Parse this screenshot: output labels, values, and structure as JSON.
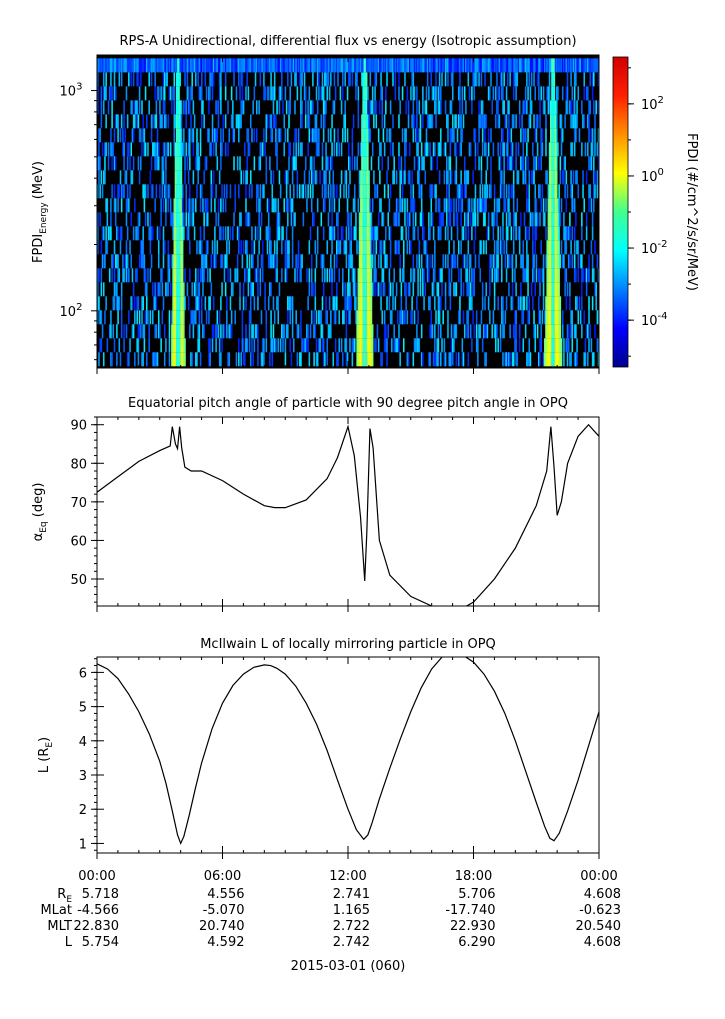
{
  "chart_data": [
    {
      "type": "heatmap",
      "title": "RPS-A Unidirectional, differential flux vs energy (Isotropic assumption)",
      "ylabel_main": "FPDI",
      "ylabel_sub": "Energy",
      "ylabel_units": "(MeV)",
      "y_scale": "log",
      "ylim": [
        55,
        1450
      ],
      "y_ticks": [
        {
          "value": 100,
          "mant": "10",
          "exp": "2"
        },
        {
          "value": 1000,
          "mant": "10",
          "exp": "3"
        }
      ],
      "colorbar": {
        "label": "FPDI (#/cm^2/s/sr/MeV)",
        "scale": "log",
        "range": [
          -5.3,
          3.3
        ],
        "ticks": [
          {
            "log": 2,
            "mant": "10",
            "exp": "2"
          },
          {
            "log": 0,
            "mant": "10",
            "exp": "0"
          },
          {
            "log": -2,
            "mant": "10",
            "exp": "-2"
          },
          {
            "log": -4,
            "mant": "10",
            "exp": "-4"
          }
        ],
        "colormap": "jet"
      },
      "energy_channels": 22,
      "time_range_hours": [
        0,
        24
      ],
      "radiation_belt_passes_hours": [
        3.55,
        4.2,
        12.4,
        13.2,
        21.4,
        22.2
      ],
      "background": "black (no data / fill) with sparse blue-cyan flux speckles"
    },
    {
      "type": "line",
      "title": "Equatorial pitch angle of particle with 90 degree pitch angle in OPQ",
      "ylabel_main": "α",
      "ylabel_sub": "Eq",
      "ylabel_units": " (deg)",
      "ylim": [
        43,
        92
      ],
      "yticks": [
        50,
        60,
        70,
        80,
        90
      ],
      "x": [
        0,
        1,
        2,
        3,
        3.5,
        3.6,
        3.75,
        3.85,
        3.95,
        4.05,
        4.2,
        4.5,
        5,
        6,
        7,
        8,
        8.5,
        9,
        10,
        11,
        11.5,
        12,
        12.3,
        12.6,
        12.8,
        12.9,
        13.05,
        13.2,
        13.5,
        14,
        15,
        16,
        16.5,
        17,
        17.5,
        18,
        19,
        20,
        21,
        21.5,
        21.7,
        21.85,
        22,
        22.2,
        22.5,
        23,
        23.5,
        24
      ],
      "y": [
        72.5,
        76.5,
        80.5,
        83.3,
        84.5,
        89.5,
        85,
        83.8,
        89.5,
        84,
        79,
        78,
        78,
        75.5,
        72,
        69,
        68.5,
        68.5,
        70.5,
        76,
        81.5,
        89.5,
        82,
        66,
        49.5,
        62,
        89,
        84,
        60,
        51,
        45.5,
        43,
        42,
        42,
        42.5,
        44,
        50,
        58,
        69,
        78,
        89.5,
        79,
        66.5,
        70,
        80,
        87,
        90,
        87
      ]
    },
    {
      "type": "line",
      "title": "McIlwain L of locally mirroring particle in OPQ",
      "ylabel_main": "L (R",
      "ylabel_sub": "E",
      "ylabel_units": ")",
      "ylim": [
        0.72,
        6.45
      ],
      "yticks": [
        1,
        2,
        3,
        4,
        5,
        6
      ],
      "x": [
        0,
        0.5,
        1,
        1.5,
        2,
        2.5,
        3,
        3.3,
        3.6,
        3.85,
        4,
        4.15,
        4.4,
        4.7,
        5,
        5.5,
        6,
        6.5,
        7,
        7.5,
        8,
        8.3,
        8.6,
        9,
        9.5,
        10,
        10.5,
        11,
        11.5,
        12,
        12.4,
        12.75,
        12.95,
        13.15,
        13.5,
        14,
        14.5,
        15,
        15.5,
        16,
        16.5,
        16.9,
        17.2,
        17.5,
        18,
        18.5,
        19,
        19.5,
        20,
        20.5,
        21,
        21.4,
        21.65,
        21.85,
        22.1,
        22.5,
        23,
        23.5,
        24
      ],
      "y": [
        6.25,
        6.1,
        5.82,
        5.38,
        4.85,
        4.2,
        3.4,
        2.75,
        1.95,
        1.25,
        1.0,
        1.2,
        1.8,
        2.6,
        3.35,
        4.35,
        5.1,
        5.62,
        5.95,
        6.15,
        6.22,
        6.2,
        6.12,
        5.95,
        5.6,
        5.1,
        4.48,
        3.72,
        2.85,
        2.0,
        1.4,
        1.12,
        1.25,
        1.6,
        2.3,
        3.2,
        4.05,
        4.85,
        5.55,
        6.1,
        6.45,
        6.6,
        6.6,
        6.5,
        6.3,
        5.95,
        5.45,
        4.8,
        4.0,
        3.1,
        2.2,
        1.5,
        1.15,
        1.08,
        1.3,
        1.95,
        2.85,
        3.85,
        4.85
      ]
    }
  ],
  "x_axis": {
    "tick_labels": [
      "00:00",
      "06:00",
      "12:00",
      "18:00",
      "00:00"
    ],
    "date_label": "2015-03-01 (060)"
  },
  "ephemeris": {
    "rows": [
      {
        "name": "R",
        "sub": "E",
        "values": [
          "5.718",
          "4.556",
          "2.741",
          "5.706",
          "4.608"
        ]
      },
      {
        "name": "MLat",
        "sub": "",
        "values": [
          "-4.566",
          "-5.070",
          "1.165",
          "-17.740",
          "-0.623"
        ]
      },
      {
        "name": "MLT",
        "sub": "",
        "values": [
          "22.830",
          "20.740",
          "2.722",
          "22.930",
          "20.540"
        ]
      },
      {
        "name": "L",
        "sub": "",
        "values": [
          "5.754",
          "4.592",
          "2.742",
          "6.290",
          "4.608"
        ]
      }
    ]
  }
}
